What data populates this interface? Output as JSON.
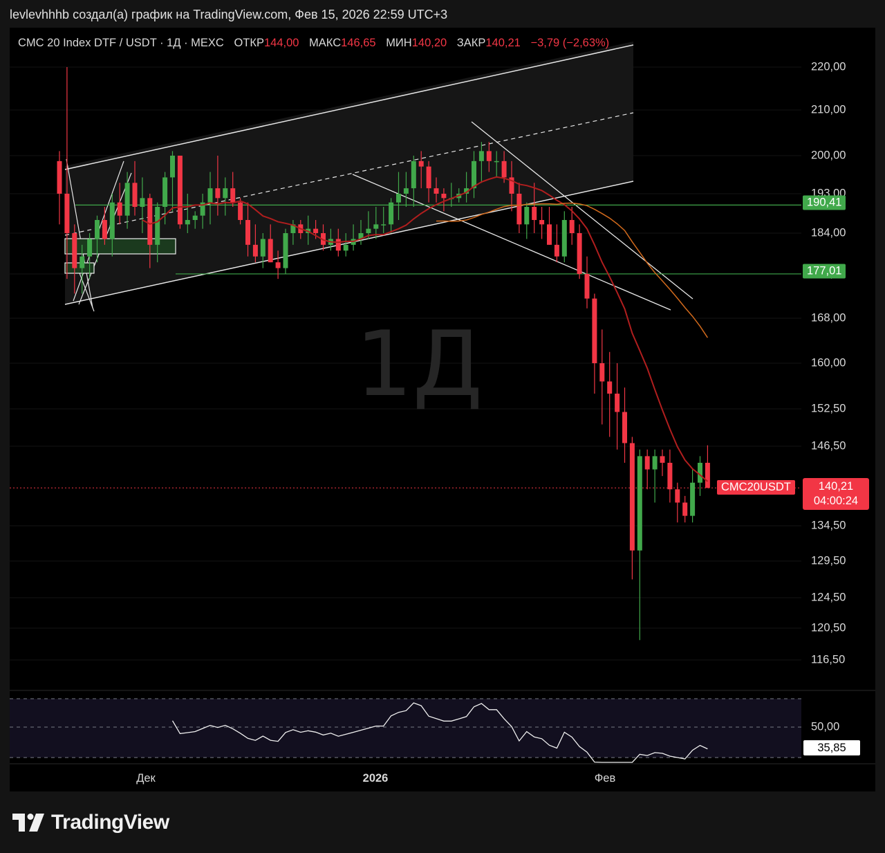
{
  "header": {
    "caption": "levlevhhhb создал(а) график на TradingView.com, Фев 15, 2026 22:59 UTC+3"
  },
  "legend": {
    "symbol": "CMC 20 Index DTF / USDT · 1Д · MEXC",
    "open_label": "ОТКР",
    "open": "144,00",
    "high_label": "МАКС",
    "high": "146,65",
    "low_label": "МИН",
    "low": "140,20",
    "close_label": "ЗАКР",
    "close": "140,21",
    "change": "−3,79 (−2,63%)"
  },
  "watermark": "1Д",
  "price_axis": {
    "labels": [
      "220,00",
      "210,00",
      "200,00",
      "193,00",
      "184,00",
      "177,00",
      "168,00",
      "160,00",
      "152,50",
      "146,50",
      "134,50",
      "129,50",
      "124,50",
      "120,50",
      "116,50"
    ],
    "level_tags": [
      "190,41",
      "177,01"
    ],
    "symbol_tag": "CMC20USDT",
    "last_price": "140,21",
    "countdown": "04:00:24"
  },
  "rsi": {
    "level_label": "50,00",
    "value": "35,85"
  },
  "time_axis": {
    "labels": [
      "Дек",
      "2026",
      "Фев"
    ]
  },
  "brand": {
    "name": "TradingView"
  },
  "colors": {
    "up": "#41a94b",
    "down": "#f23645",
    "ma_red": "#b01e1e",
    "ma_orange": "#d26a1c",
    "background": "#000000"
  },
  "chart_data": {
    "type": "candlestick",
    "title": "CMC 20 Index DTF / USDT · 1Д · MEXC",
    "y_axis_ticks": [
      220,
      210,
      200,
      193,
      184,
      177,
      168,
      160,
      152.5,
      146.5,
      134.5,
      129.5,
      124.5,
      120.5,
      116.5
    ],
    "horizontal_levels": [
      190.41,
      177.01
    ],
    "last": {
      "open": 144.0,
      "high": 146.65,
      "low": 140.2,
      "close": 140.21
    },
    "candles": [
      [
        199,
        201,
        186,
        193
      ],
      [
        193,
        220,
        176,
        184
      ],
      [
        184,
        186,
        173,
        178
      ],
      [
        178,
        182,
        173,
        180
      ],
      [
        180,
        184,
        176,
        183
      ],
      [
        183,
        188,
        179,
        187
      ],
      [
        187,
        190,
        182,
        183
      ],
      [
        183,
        193,
        180,
        191
      ],
      [
        191,
        195,
        186,
        188
      ],
      [
        188,
        197,
        185,
        195
      ],
      [
        195,
        199,
        188,
        190
      ],
      [
        190,
        196,
        184,
        192
      ],
      [
        192,
        193,
        178,
        182
      ],
      [
        182,
        191,
        179,
        190
      ],
      [
        190,
        197,
        186,
        196
      ],
      [
        196,
        201,
        189,
        200
      ],
      [
        200,
        200,
        185,
        186
      ],
      [
        186,
        193,
        184,
        187
      ],
      [
        187,
        189,
        185,
        188
      ],
      [
        188,
        193,
        185,
        191
      ],
      [
        191,
        197,
        186,
        194
      ],
      [
        194,
        200,
        188,
        192
      ],
      [
        192,
        196,
        188,
        194
      ],
      [
        194,
        197,
        190,
        191
      ],
      [
        191,
        192,
        186,
        187
      ],
      [
        187,
        191,
        180,
        182
      ],
      [
        182,
        186,
        179,
        180
      ],
      [
        180,
        184,
        178,
        183
      ],
      [
        183,
        186,
        179,
        179
      ],
      [
        179,
        181,
        176,
        178
      ],
      [
        178,
        185,
        177,
        184
      ],
      [
        184,
        187,
        182,
        186
      ],
      [
        186,
        187,
        183,
        184
      ],
      [
        184,
        188,
        182,
        185
      ],
      [
        185,
        187,
        183,
        184
      ],
      [
        184,
        186,
        181,
        182
      ],
      [
        182,
        185,
        181,
        183
      ],
      [
        183,
        185,
        180,
        181
      ],
      [
        181,
        184,
        180,
        182
      ],
      [
        182,
        186,
        181,
        183
      ],
      [
        183,
        187,
        182,
        184
      ],
      [
        184,
        189,
        183,
        185
      ],
      [
        185,
        190,
        183,
        186
      ],
      [
        186,
        190,
        184,
        186
      ],
      [
        186,
        192,
        184,
        191
      ],
      [
        191,
        197,
        187,
        193
      ],
      [
        193,
        197,
        190,
        194
      ],
      [
        194,
        200,
        190,
        199
      ],
      [
        199,
        201,
        194,
        198
      ],
      [
        198,
        199,
        191,
        194
      ],
      [
        194,
        196,
        191,
        193
      ],
      [
        193,
        194,
        189,
        192
      ],
      [
        192,
        195,
        190,
        192
      ],
      [
        192,
        194,
        191,
        193
      ],
      [
        193,
        197,
        191,
        194
      ],
      [
        194,
        201,
        192,
        199
      ],
      [
        199,
        203,
        195,
        201
      ],
      [
        201,
        203,
        197,
        199
      ],
      [
        199,
        201,
        196,
        199
      ],
      [
        199,
        201,
        195,
        196
      ],
      [
        196,
        199,
        189,
        193
      ],
      [
        193,
        195,
        184,
        186
      ],
      [
        186,
        191,
        183,
        190
      ],
      [
        190,
        195,
        184,
        187
      ],
      [
        187,
        190,
        183,
        186
      ],
      [
        186,
        190,
        182,
        182
      ],
      [
        182,
        186,
        179,
        180
      ],
      [
        180,
        189,
        179,
        187
      ],
      [
        187,
        190,
        182,
        184
      ],
      [
        184,
        186,
        176,
        177
      ],
      [
        177,
        180,
        170,
        172
      ],
      [
        172,
        173,
        155,
        160
      ],
      [
        160,
        166,
        150,
        157
      ],
      [
        157,
        162,
        148,
        155
      ],
      [
        155,
        160,
        146,
        152
      ],
      [
        152,
        156,
        144,
        147
      ],
      [
        147,
        148,
        127,
        131
      ],
      [
        131,
        146,
        119,
        145
      ],
      [
        145,
        146,
        140,
        143
      ],
      [
        143,
        146,
        138,
        145
      ],
      [
        145,
        146,
        142,
        144
      ],
      [
        144,
        146,
        138,
        140
      ],
      [
        140,
        141,
        135,
        138
      ],
      [
        138,
        139,
        135,
        136
      ],
      [
        136,
        143,
        135,
        141
      ],
      [
        141,
        145,
        139,
        144
      ],
      [
        144,
        146.65,
        140.2,
        140.21
      ]
    ]
  }
}
